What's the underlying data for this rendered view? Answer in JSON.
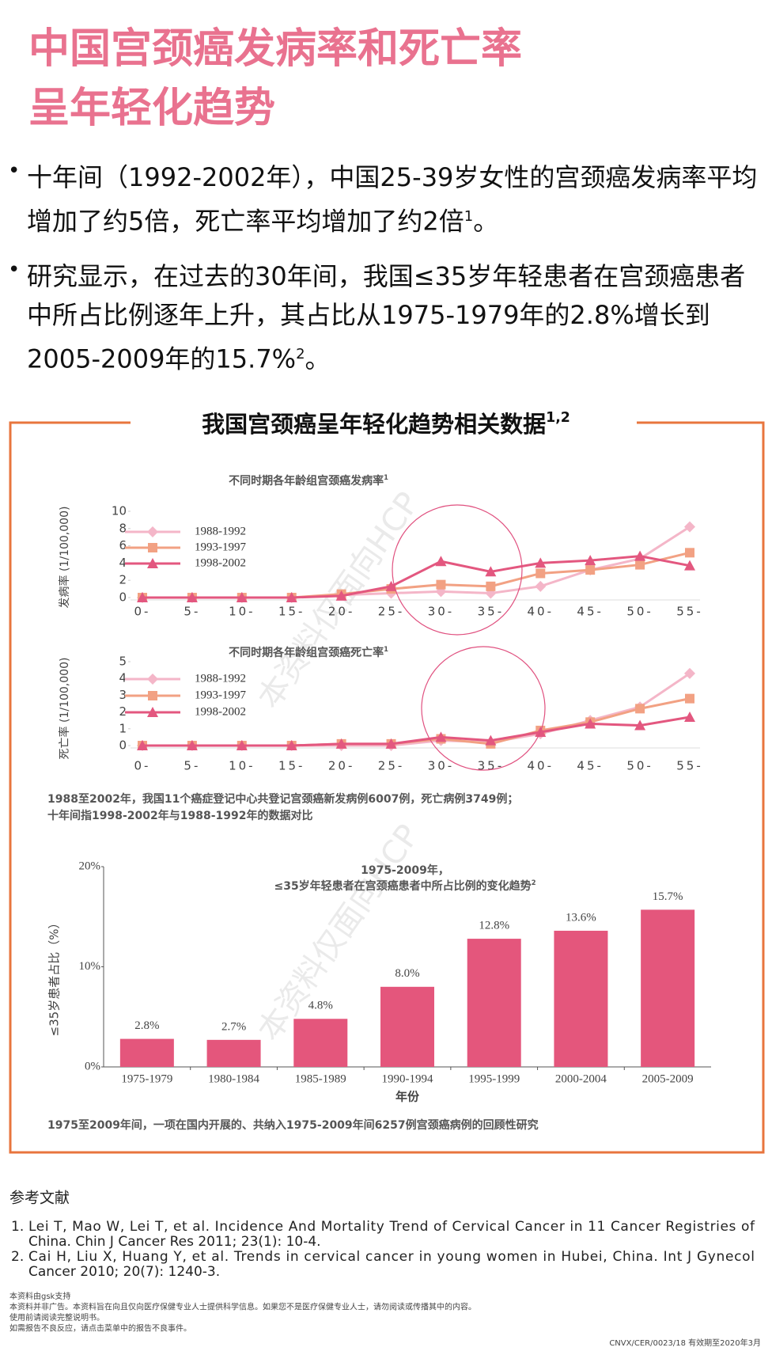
{
  "title": [
    "中国宫颈癌发病率和死亡率",
    "呈年轻化趋势"
  ],
  "bullets": [
    {
      "text": "十年间（1992-2002年），中国25-39岁女性的宫颈癌发病率平均增加了约5倍，死亡率平均增加了约2倍",
      "sup": "1",
      "end": "。"
    },
    {
      "text": "研究显示，在过去的30年间，我国≤35岁年轻患者在宫颈癌患者中所占比例逐年上升，其占比从1975-1979年的2.8%增长到2005-2009年的15.7%",
      "sup": "2",
      "end": "。"
    }
  ],
  "box": {
    "title": "我国宫颈癌呈年轻化趋势相关数据",
    "sup": "1,2",
    "note_lines": [
      "1988至2002年，我国11个癌症登记中心共登记宫颈癌新发病例6007例，死亡病例3749例；",
      "十年间指1998-2002年与1988-1992年的数据对比"
    ],
    "bar_note": "1975至2009年间，一项在国内开展的、共纳入1975-2009年间6257例宫颈癌病例的回顾性研究"
  },
  "watermark": "本资料仅面向HCP",
  "chart_data": [
    {
      "type": "line",
      "title": "不同时期各年龄组宫颈癌发病率",
      "title_sup": "1",
      "ylabel": "发病率 (1/100,000)",
      "categories": [
        "0-",
        "5-",
        "10-",
        "15-",
        "20-",
        "25-",
        "30-",
        "35-",
        "40-",
        "45-",
        "50-",
        "55-"
      ],
      "ylim": [
        0,
        10
      ],
      "yticks": [
        0,
        2,
        4,
        6,
        8,
        10
      ],
      "series": [
        {
          "name": "1988-1992",
          "color": "#f4b6c8",
          "marker": "diamond",
          "values": [
            0,
            0,
            0,
            0,
            0.3,
            0.5,
            0.7,
            0.5,
            1.3,
            3.2,
            4.5,
            8.2
          ]
        },
        {
          "name": "1993-1997",
          "color": "#f2a183",
          "marker": "square",
          "values": [
            0,
            0,
            0,
            0,
            0.4,
            1.0,
            1.5,
            1.3,
            2.8,
            3.2,
            3.8,
            5.2
          ]
        },
        {
          "name": "1998-2002",
          "color": "#e3577f",
          "marker": "triangle",
          "values": [
            0,
            0,
            0,
            0,
            0.2,
            1.3,
            4.2,
            3.0,
            4.0,
            4.3,
            4.8,
            3.7
          ]
        }
      ]
    },
    {
      "type": "line",
      "title": "不同时期各年龄组宫颈癌死亡率",
      "title_sup": "1",
      "ylabel": "死亡率 (1/100,000)",
      "categories": [
        "0-",
        "5-",
        "10-",
        "15-",
        "20-",
        "25-",
        "30-",
        "35-",
        "40-",
        "45-",
        "50-",
        "55-"
      ],
      "ylim": [
        0,
        5
      ],
      "yticks": [
        0,
        1,
        2,
        3,
        4,
        5
      ],
      "series": [
        {
          "name": "1988-1992",
          "color": "#f4b6c8",
          "marker": "diamond",
          "values": [
            0,
            0,
            0,
            0,
            0,
            0,
            0.3,
            0.2,
            0.7,
            1.5,
            2.3,
            4.3
          ]
        },
        {
          "name": "1993-1997",
          "color": "#f2a183",
          "marker": "square",
          "values": [
            0,
            0,
            0,
            0,
            0.1,
            0.1,
            0.4,
            0.1,
            0.9,
            1.4,
            2.2,
            2.8
          ]
        },
        {
          "name": "1998-2002",
          "color": "#e3577f",
          "marker": "triangle",
          "values": [
            0,
            0,
            0,
            0,
            0.1,
            0.1,
            0.5,
            0.3,
            0.8,
            1.3,
            1.2,
            1.7
          ]
        }
      ]
    },
    {
      "type": "bar",
      "title": [
        "1975-2009年，",
        "≤35岁年轻患者在宫颈癌患者中所占比例的变化趋势"
      ],
      "title_sup": "2",
      "ylabel": "≤35岁患者占比（%）",
      "xlabel": "年份",
      "categories": [
        "1975-1979",
        "1980-1984",
        "1985-1989",
        "1990-1994",
        "1995-1999",
        "2000-2004",
        "2005-2009"
      ],
      "values": [
        2.8,
        2.7,
        4.8,
        8.0,
        12.8,
        13.6,
        15.7
      ],
      "value_labels": [
        "2.8%",
        "2.7%",
        "4.8%",
        "8.0%",
        "12.8%",
        "13.6%",
        "15.7%"
      ],
      "color": "#e4567c",
      "ylim": [
        0,
        20
      ],
      "yticks": [
        {
          "value": 0,
          "label": "0%"
        },
        {
          "value": 10,
          "label": "10%"
        },
        {
          "value": 20,
          "label": "20%"
        }
      ]
    }
  ],
  "references": {
    "heading": "参考文献",
    "items": [
      [
        "1.",
        "Lei T, Mao W, Lei T, et al. Incidence And Mortality Trend of Cervical Cancer in 11 Cancer Registries of",
        "China. Chin J Cancer Res 2011; 23(1): 10-4."
      ],
      [
        "2.",
        "Cai H, Liu X, Huang Y, et al. Trends in cervical cancer in young women in Hubei, China. Int J Gynecol",
        "Cancer 2010; 20(7): 1240-3."
      ]
    ]
  },
  "footer": {
    "lines": [
      "本资料由gsk支持",
      "本资料并非广告。本资料旨在向且仅向医疗保健专业人士提供科学信息。如果您不是医疗保健专业人士，请勿阅读或传播其中的内容。",
      "使用前请阅读完整说明书。",
      "如需报告不良反应，请点击菜单中的报告不良事件。"
    ],
    "code": "CNVX/CER/0023/18 有效期至2020年3月"
  }
}
